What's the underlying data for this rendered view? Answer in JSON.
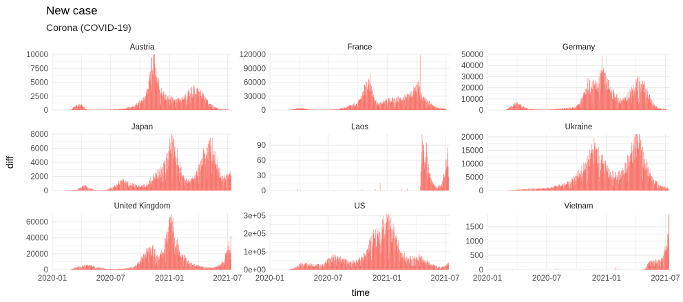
{
  "header": {
    "title": "New case",
    "subtitle": "Corona (COVID-19)"
  },
  "chart_data": {
    "type": "bar",
    "facet_layout": "3x3",
    "xlabel": "time",
    "ylabel": "diff",
    "bar_color": "#F8766D",
    "grid_color": "#EBEBEB",
    "grid": true,
    "x_range": [
      "2020-01-01",
      "2021-07-15"
    ],
    "x_ticks": [
      "2020-01",
      "2020-07",
      "2021-01",
      "2021-07"
    ],
    "panels": [
      {
        "name": "Austria",
        "ylim": [
          0,
          10000
        ],
        "y_ticks": [
          0,
          2500,
          5000,
          7500,
          10000
        ],
        "y_tick_labels": [
          "0",
          "2500",
          "5000",
          "7500",
          "10000"
        ],
        "series": [
          [
            "2020-02-25",
            0
          ],
          [
            "2020-03-10",
            500
          ],
          [
            "2020-03-25",
            1100
          ],
          [
            "2020-04-05",
            600
          ],
          [
            "2020-04-20",
            100
          ],
          [
            "2020-05-15",
            50
          ],
          [
            "2020-06-15",
            60
          ],
          [
            "2020-07-15",
            120
          ],
          [
            "2020-08-15",
            250
          ],
          [
            "2020-09-15",
            700
          ],
          [
            "2020-10-15",
            2000
          ],
          [
            "2020-10-28",
            4500
          ],
          [
            "2020-11-05",
            7000
          ],
          [
            "2020-11-13",
            9500
          ],
          [
            "2020-11-22",
            6000
          ],
          [
            "2020-12-05",
            3200
          ],
          [
            "2020-12-20",
            2200
          ],
          [
            "2021-01-05",
            2000
          ],
          [
            "2021-01-20",
            1500
          ],
          [
            "2021-02-05",
            1800
          ],
          [
            "2021-02-20",
            2300
          ],
          [
            "2021-03-10",
            3200
          ],
          [
            "2021-03-25",
            3600
          ],
          [
            "2021-04-05",
            3000
          ],
          [
            "2021-04-20",
            2200
          ],
          [
            "2021-05-05",
            1100
          ],
          [
            "2021-05-20",
            500
          ],
          [
            "2021-06-10",
            150
          ],
          [
            "2021-07-05",
            100
          ]
        ]
      },
      {
        "name": "France",
        "ylim": [
          0,
          120000
        ],
        "y_ticks": [
          0,
          30000,
          60000,
          90000,
          120000
        ],
        "y_tick_labels": [
          "0",
          "30000",
          "60000",
          "90000",
          "120000"
        ],
        "series": [
          [
            "2020-02-25",
            0
          ],
          [
            "2020-03-15",
            2000
          ],
          [
            "2020-03-31",
            4500
          ],
          [
            "2020-04-15",
            3500
          ],
          [
            "2020-05-05",
            1000
          ],
          [
            "2020-06-01",
            500
          ],
          [
            "2020-07-01",
            600
          ],
          [
            "2020-08-01",
            2000
          ],
          [
            "2020-08-25",
            6000
          ],
          [
            "2020-09-15",
            10000
          ],
          [
            "2020-10-01",
            14000
          ],
          [
            "2020-10-15",
            30000
          ],
          [
            "2020-10-28",
            50000
          ],
          [
            "2020-11-05",
            70000
          ],
          [
            "2020-11-15",
            40000
          ],
          [
            "2020-12-01",
            12000
          ],
          [
            "2020-12-15",
            15000
          ],
          [
            "2021-01-05",
            20000
          ],
          [
            "2021-02-01",
            22000
          ],
          [
            "2021-03-01",
            25000
          ],
          [
            "2021-03-20",
            35000
          ],
          [
            "2021-04-01",
            45000
          ],
          [
            "2021-04-10",
            55000
          ],
          [
            "2021-04-15",
            30000
          ],
          [
            "2021-05-01",
            20000
          ],
          [
            "2021-05-20",
            12000
          ],
          [
            "2021-06-10",
            4000
          ],
          [
            "2021-07-05",
            3000
          ]
        ],
        "spikes": [
          [
            "2021-04-14",
            118000
          ]
        ]
      },
      {
        "name": "Germany",
        "ylim": [
          0,
          50000
        ],
        "y_ticks": [
          0,
          10000,
          20000,
          30000,
          40000,
          50000
        ],
        "y_tick_labels": [
          "0",
          "10000",
          "20000",
          "30000",
          "40000",
          "50000"
        ],
        "series": [
          [
            "2020-02-25",
            0
          ],
          [
            "2020-03-15",
            3000
          ],
          [
            "2020-03-30",
            6500
          ],
          [
            "2020-04-15",
            3500
          ],
          [
            "2020-05-05",
            1000
          ],
          [
            "2020-06-01",
            400
          ],
          [
            "2020-07-01",
            400
          ],
          [
            "2020-08-10",
            1200
          ],
          [
            "2020-09-15",
            1800
          ],
          [
            "2020-10-10",
            5000
          ],
          [
            "2020-10-25",
            15000
          ],
          [
            "2020-11-05",
            22000
          ],
          [
            "2020-11-20",
            20000
          ],
          [
            "2020-12-05",
            22000
          ],
          [
            "2020-12-18",
            30000
          ],
          [
            "2021-01-05",
            22000
          ],
          [
            "2021-01-20",
            15000
          ],
          [
            "2021-02-10",
            8000
          ],
          [
            "2021-03-01",
            9000
          ],
          [
            "2021-03-20",
            18000
          ],
          [
            "2021-04-10",
            24000
          ],
          [
            "2021-04-25",
            22000
          ],
          [
            "2021-05-10",
            12000
          ],
          [
            "2021-05-25",
            5000
          ],
          [
            "2021-06-10",
            1500
          ],
          [
            "2021-07-05",
            800
          ]
        ],
        "spikes": [
          [
            "2020-12-18",
            49000
          ]
        ]
      },
      {
        "name": "Japan",
        "ylim": [
          0,
          8000
        ],
        "y_ticks": [
          0,
          2000,
          4000,
          6000,
          8000
        ],
        "y_tick_labels": [
          "0",
          "2000",
          "4000",
          "6000",
          "8000"
        ],
        "series": [
          [
            "2020-02-01",
            0
          ],
          [
            "2020-03-15",
            100
          ],
          [
            "2020-04-12",
            650
          ],
          [
            "2020-04-30",
            250
          ],
          [
            "2020-05-20",
            50
          ],
          [
            "2020-06-20",
            100
          ],
          [
            "2020-07-15",
            600
          ],
          [
            "2020-08-05",
            1400
          ],
          [
            "2020-08-25",
            1000
          ],
          [
            "2020-09-20",
            600
          ],
          [
            "2020-10-20",
            700
          ],
          [
            "2020-11-15",
            2000
          ],
          [
            "2020-12-15",
            3000
          ],
          [
            "2021-01-08",
            6500
          ],
          [
            "2021-01-25",
            4500
          ],
          [
            "2021-02-15",
            1500
          ],
          [
            "2021-03-05",
            1200
          ],
          [
            "2021-03-25",
            2000
          ],
          [
            "2021-04-20",
            5000
          ],
          [
            "2021-05-10",
            6200
          ],
          [
            "2021-05-25",
            4500
          ],
          [
            "2021-06-10",
            2000
          ],
          [
            "2021-06-25",
            1600
          ],
          [
            "2021-07-05",
            2200
          ],
          [
            "2021-07-12",
            2500
          ]
        ],
        "spikes": [
          [
            "2021-01-08",
            7800
          ],
          [
            "2021-05-08",
            7200
          ]
        ]
      },
      {
        "name": "Laos",
        "ylim": [
          0,
          112
        ],
        "y_ticks": [
          0,
          30,
          60,
          90
        ],
        "y_tick_labels": [
          "0",
          "30",
          "60",
          "90"
        ],
        "series": [
          [
            "2021-04-14",
            0
          ],
          [
            "2021-04-20",
            110
          ],
          [
            "2021-04-28",
            60
          ],
          [
            "2021-05-05",
            80
          ],
          [
            "2021-05-10",
            40
          ],
          [
            "2021-05-18",
            20
          ],
          [
            "2021-05-28",
            10
          ],
          [
            "2021-06-05",
            6
          ],
          [
            "2021-06-20",
            10
          ],
          [
            "2021-07-01",
            40
          ],
          [
            "2021-07-08",
            70
          ],
          [
            "2021-07-12",
            30
          ]
        ],
        "spikes": [
          [
            "2020-03-28",
            3
          ],
          [
            "2020-04-06",
            2
          ],
          [
            "2020-07-20",
            1
          ],
          [
            "2020-10-15",
            2
          ],
          [
            "2020-11-25",
            3
          ],
          [
            "2020-12-10",
            15
          ],
          [
            "2021-02-15",
            3
          ],
          [
            "2021-03-05",
            4
          ]
        ]
      },
      {
        "name": "Ukraine",
        "ylim": [
          0,
          21000
        ],
        "y_ticks": [
          0,
          5000,
          10000,
          15000,
          20000
        ],
        "y_tick_labels": [
          "0",
          "5000",
          "10000",
          "15000",
          "20000"
        ],
        "series": [
          [
            "2020-03-01",
            0
          ],
          [
            "2020-04-01",
            300
          ],
          [
            "2020-05-01",
            500
          ],
          [
            "2020-06-01",
            700
          ],
          [
            "2020-07-01",
            900
          ],
          [
            "2020-08-01",
            1500
          ],
          [
            "2020-09-01",
            2500
          ],
          [
            "2020-10-01",
            5000
          ],
          [
            "2020-10-20",
            7500
          ],
          [
            "2020-11-05",
            10000
          ],
          [
            "2020-11-25",
            15000
          ],
          [
            "2020-12-10",
            12000
          ],
          [
            "2021-01-05",
            7000
          ],
          [
            "2021-01-25",
            5500
          ],
          [
            "2021-02-15",
            6000
          ],
          [
            "2021-03-05",
            10000
          ],
          [
            "2021-03-25",
            15000
          ],
          [
            "2021-04-05",
            19000
          ],
          [
            "2021-04-20",
            13000
          ],
          [
            "2021-05-10",
            7000
          ],
          [
            "2021-05-30",
            3000
          ],
          [
            "2021-06-20",
            1500
          ],
          [
            "2021-07-10",
            900
          ]
        ],
        "spikes": [
          [
            "2020-11-26",
            16800
          ],
          [
            "2021-04-02",
            20500
          ]
        ]
      },
      {
        "name": "United Kingdom",
        "ylim": [
          0,
          70000
        ],
        "y_ticks": [
          0,
          20000,
          40000,
          60000
        ],
        "y_tick_labels": [
          "0",
          "20000",
          "40000",
          "60000"
        ],
        "series": [
          [
            "2020-02-25",
            0
          ],
          [
            "2020-03-20",
            3000
          ],
          [
            "2020-04-10",
            5000
          ],
          [
            "2020-04-30",
            5000
          ],
          [
            "2020-05-20",
            2500
          ],
          [
            "2020-06-15",
            1000
          ],
          [
            "2020-07-15",
            700
          ],
          [
            "2020-08-15",
            1200
          ],
          [
            "2020-09-15",
            4000
          ],
          [
            "2020-10-10",
            15000
          ],
          [
            "2020-10-25",
            22000
          ],
          [
            "2020-11-10",
            25000
          ],
          [
            "2020-11-30",
            15000
          ],
          [
            "2020-12-15",
            25000
          ],
          [
            "2020-12-30",
            50000
          ],
          [
            "2021-01-08",
            60000
          ],
          [
            "2021-01-20",
            40000
          ],
          [
            "2021-02-05",
            20000
          ],
          [
            "2021-02-25",
            10000
          ],
          [
            "2021-03-20",
            5500
          ],
          [
            "2021-04-20",
            2500
          ],
          [
            "2021-05-20",
            2500
          ],
          [
            "2021-06-05",
            5000
          ],
          [
            "2021-06-20",
            10000
          ],
          [
            "2021-07-01",
            25000
          ],
          [
            "2021-07-12",
            32000
          ]
        ]
      },
      {
        "name": "US",
        "ylim": [
          0,
          310000
        ],
        "y_ticks": [
          0,
          100000,
          200000,
          300000
        ],
        "y_tick_labels": [
          "0e+00",
          "1e+05",
          "2e+05",
          "3e+05"
        ],
        "series": [
          [
            "2020-03-01",
            0
          ],
          [
            "2020-03-20",
            10000
          ],
          [
            "2020-04-05",
            32000
          ],
          [
            "2020-04-25",
            30000
          ],
          [
            "2020-05-20",
            22000
          ],
          [
            "2020-06-15",
            25000
          ],
          [
            "2020-07-01",
            50000
          ],
          [
            "2020-07-20",
            68000
          ],
          [
            "2020-08-10",
            55000
          ],
          [
            "2020-09-05",
            40000
          ],
          [
            "2020-10-01",
            45000
          ],
          [
            "2020-10-25",
            80000
          ],
          [
            "2020-11-15",
            160000
          ],
          [
            "2020-12-01",
            180000
          ],
          [
            "2020-12-15",
            220000
          ],
          [
            "2021-01-08",
            260000
          ],
          [
            "2021-01-25",
            170000
          ],
          [
            "2021-02-15",
            80000
          ],
          [
            "2021-03-10",
            55000
          ],
          [
            "2021-04-10",
            70000
          ],
          [
            "2021-05-05",
            40000
          ],
          [
            "2021-05-30",
            20000
          ],
          [
            "2021-06-20",
            12000
          ],
          [
            "2021-07-05",
            25000
          ],
          [
            "2021-07-12",
            40000
          ]
        ],
        "spikes": [
          [
            "2021-01-02",
            280000
          ]
        ]
      },
      {
        "name": "Vietnam",
        "ylim": [
          0,
          1950
        ],
        "y_ticks": [
          0,
          500,
          1000,
          1500
        ],
        "y_tick_labels": [
          "0",
          "500",
          "1000",
          "1500"
        ],
        "series": [
          [
            "2021-04-20",
            0
          ],
          [
            "2021-05-01",
            40
          ],
          [
            "2021-05-10",
            200
          ],
          [
            "2021-05-25",
            300
          ],
          [
            "2021-06-05",
            250
          ],
          [
            "2021-06-15",
            300
          ],
          [
            "2021-06-25",
            400
          ],
          [
            "2021-07-01",
            800
          ],
          [
            "2021-07-08",
            1200
          ],
          [
            "2021-07-12",
            1850
          ]
        ],
        "spikes": [
          [
            "2020-03-20",
            10
          ],
          [
            "2020-04-10",
            5
          ],
          [
            "2020-07-30",
            45
          ],
          [
            "2020-08-05",
            30
          ],
          [
            "2020-11-15",
            5
          ],
          [
            "2021-01-28",
            90
          ],
          [
            "2021-02-05",
            60
          ],
          [
            "2021-02-18",
            20
          ]
        ]
      }
    ]
  }
}
